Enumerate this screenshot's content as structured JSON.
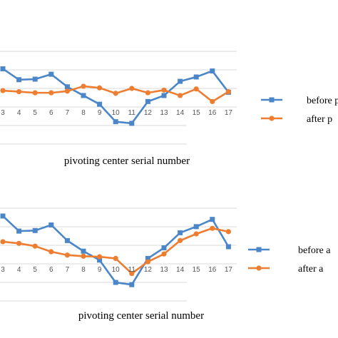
{
  "chart_data": [
    {
      "type": "line",
      "xlabel": "pivoting center serial number",
      "x": [
        "3",
        "4",
        "5",
        "6",
        "7",
        "8",
        "9",
        "10",
        "11",
        "12",
        "13",
        "14",
        "15",
        "16",
        "17"
      ],
      "series": [
        {
          "name": "before p",
          "color": "#4a86c8",
          "marker": "square",
          "values": [
            10.8,
            8.8,
            8.9,
            9.8,
            7.5,
            5.9,
            4.3,
            1.1,
            0.8,
            4.8,
            5.9,
            8.5,
            9.3,
            10.4,
            6.5
          ]
        },
        {
          "name": "after p",
          "color": "#ed7d31",
          "marker": "circle",
          "values": [
            6.8,
            6.6,
            6.4,
            6.4,
            6.7,
            7.6,
            7.3,
            6.3,
            7.2,
            6.4,
            6.9,
            5.9,
            7.1,
            4.8,
            6.6
          ]
        }
      ],
      "ylim": [
        -3,
        14
      ],
      "grid": true,
      "legend_position": "right"
    },
    {
      "type": "line",
      "xlabel": "pivoting center serial number",
      "x": [
        "3",
        "4",
        "5",
        "6",
        "7",
        "8",
        "9",
        "10",
        "11",
        "12",
        "13",
        "14",
        "15",
        "16",
        "17"
      ],
      "series": [
        {
          "name": "before a",
          "color": "#4a86c8",
          "marker": "square",
          "values": [
            12.6,
            9.9,
            10.0,
            11.0,
            8.2,
            6.3,
            4.7,
            0.7,
            0.3,
            5.0,
            6.9,
            9.6,
            10.7,
            12.0,
            7.1
          ]
        },
        {
          "name": "after a",
          "color": "#ed7d31",
          "marker": "circle",
          "values": [
            8.0,
            7.7,
            7.2,
            6.2,
            5.6,
            5.4,
            5.3,
            5.0,
            2.3,
            4.4,
            5.8,
            8.2,
            9.4,
            10.4,
            9.8
          ]
        }
      ],
      "ylim": [
        -3,
        14
      ],
      "grid": true,
      "legend_position": "right"
    }
  ]
}
